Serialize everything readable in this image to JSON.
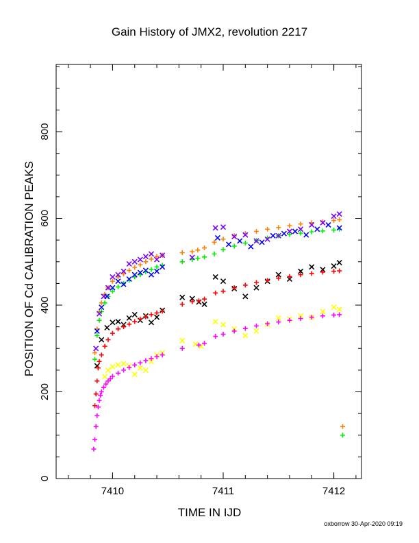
{
  "chart_data": {
    "type": "scatter",
    "title": "Gain History of JMX2, revolution 2217",
    "xlabel": "TIME IN IJD",
    "ylabel": "POSITION OF Cd CALIBRATION PEAKS",
    "xlim": [
      7409.49,
      7412.25
    ],
    "ylim": [
      0,
      955
    ],
    "x_ticks": [
      7410,
      7411,
      7412
    ],
    "y_ticks": [
      0,
      200,
      400,
      600,
      800
    ],
    "series": [
      {
        "color": "#ff7f00",
        "marker": "plus",
        "x": [
          7409.84,
          7409.86,
          7409.88,
          7409.9,
          7409.93,
          7409.96,
          7410.0,
          7410.05,
          7410.1,
          7410.15,
          7410.2,
          7410.25,
          7410.3,
          7410.35,
          7410.4,
          7410.45,
          7410.63,
          7410.72,
          7410.77,
          7410.83,
          7410.92,
          7411.0,
          7411.1,
          7411.2,
          7411.3,
          7411.4,
          7411.5,
          7411.6,
          7411.7,
          7411.8,
          7411.9,
          7412.0,
          7412.05,
          7412.08
        ],
        "y": [
          290,
          345,
          385,
          405,
          425,
          440,
          455,
          465,
          472,
          480,
          487,
          493,
          500,
          506,
          512,
          515,
          521,
          523,
          527,
          532,
          545,
          552,
          560,
          565,
          570,
          575,
          579,
          583,
          587,
          590,
          592,
          595,
          597,
          120
        ]
      },
      {
        "color": "#00ee00",
        "marker": "plus",
        "x": [
          7409.84,
          7409.86,
          7409.88,
          7409.9,
          7409.93,
          7409.96,
          7410.0,
          7410.05,
          7410.1,
          7410.15,
          7410.2,
          7410.25,
          7410.3,
          7410.35,
          7410.4,
          7410.45,
          7410.63,
          7410.72,
          7410.77,
          7410.83,
          7410.92,
          7411.0,
          7411.1,
          7411.2,
          7411.3,
          7411.4,
          7411.5,
          7411.6,
          7411.7,
          7411.8,
          7411.9,
          7412.0,
          7412.05,
          7412.08
        ],
        "y": [
          275,
          330,
          365,
          385,
          405,
          420,
          432,
          442,
          450,
          457,
          465,
          470,
          477,
          482,
          488,
          492,
          500,
          505,
          508,
          511,
          518,
          528,
          536,
          543,
          549,
          555,
          560,
          563,
          566,
          569,
          571,
          573,
          575,
          100
        ]
      },
      {
        "color": "#7700ff",
        "marker": "cross",
        "x": [
          7409.85,
          7409.88,
          7409.92,
          7409.96,
          7410.0,
          7410.05,
          7410.1,
          7410.15,
          7410.2,
          7410.25,
          7410.3,
          7410.35,
          7410.4,
          7410.45,
          7410.72,
          7410.93,
          7411.0,
          7411.1,
          7411.2,
          7411.3,
          7411.4,
          7411.5,
          7411.6,
          7411.7,
          7411.8,
          7411.9,
          7412.0,
          7412.05
        ],
        "y": [
          300,
          380,
          420,
          440,
          465,
          470,
          478,
          495,
          500,
          505,
          512,
          518,
          505,
          515,
          510,
          578,
          580,
          558,
          562,
          548,
          552,
          560,
          570,
          575,
          585,
          590,
          605,
          610
        ]
      },
      {
        "color": "#0000ff",
        "marker": "cross",
        "x": [
          7409.86,
          7409.9,
          7409.95,
          7410.0,
          7410.05,
          7410.1,
          7410.15,
          7410.2,
          7410.25,
          7410.3,
          7410.35,
          7410.4,
          7410.45,
          7410.95,
          7411.05,
          7411.15,
          7411.25,
          7411.35,
          7411.45,
          7411.55,
          7411.65,
          7411.75,
          7411.85,
          7411.95,
          7412.05
        ],
        "y": [
          340,
          395,
          420,
          440,
          455,
          448,
          460,
          470,
          475,
          480,
          470,
          478,
          488,
          555,
          540,
          548,
          535,
          545,
          560,
          565,
          570,
          562,
          575,
          585,
          578
        ]
      },
      {
        "color": "#000000",
        "marker": "cross",
        "x": [
          7409.86,
          7409.9,
          7409.95,
          7410.0,
          7410.05,
          7410.1,
          7410.15,
          7410.2,
          7410.25,
          7410.3,
          7410.35,
          7410.4,
          7410.45,
          7410.63,
          7410.72,
          7410.78,
          7410.83,
          7410.93,
          7411.0,
          7411.1,
          7411.2,
          7411.3,
          7411.4,
          7411.5,
          7411.6,
          7411.7,
          7411.8,
          7411.9,
          7412.0,
          7412.05
        ],
        "y": [
          260,
          320,
          348,
          360,
          362,
          355,
          370,
          378,
          365,
          375,
          360,
          372,
          388,
          418,
          415,
          407,
          402,
          465,
          455,
          438,
          420,
          440,
          455,
          470,
          460,
          478,
          488,
          482,
          490,
          498
        ]
      },
      {
        "color": "#ff0000",
        "marker": "plus",
        "x": [
          7409.84,
          7409.85,
          7409.86,
          7409.87,
          7409.88,
          7409.9,
          7409.93,
          7409.96,
          7410.0,
          7410.05,
          7410.1,
          7410.15,
          7410.2,
          7410.25,
          7410.3,
          7410.35,
          7410.4,
          7410.45,
          7410.63,
          7410.72,
          7410.78,
          7410.83,
          7410.93,
          7411.0,
          7411.1,
          7411.2,
          7411.3,
          7411.4,
          7411.5,
          7411.6,
          7411.7,
          7411.8,
          7411.9,
          7412.0,
          7412.05
        ],
        "y": [
          168,
          195,
          225,
          255,
          270,
          285,
          305,
          320,
          335,
          345,
          350,
          356,
          362,
          368,
          373,
          378,
          382,
          386,
          402,
          408,
          410,
          414,
          428,
          432,
          440,
          446,
          452,
          457,
          462,
          466,
          470,
          473,
          476,
          478,
          479
        ]
      },
      {
        "color": "#ffff00",
        "marker": "cross",
        "x": [
          7409.93,
          7409.96,
          7410.0,
          7410.05,
          7410.1,
          7410.15,
          7410.2,
          7410.25,
          7410.3,
          7410.35,
          7410.4,
          7410.45,
          7410.63,
          7410.75,
          7410.8,
          7410.93,
          7411.0,
          7411.1,
          7411.2,
          7411.3,
          7411.4,
          7411.5,
          7411.6,
          7411.7,
          7411.8,
          7411.9,
          7412.0,
          7412.05
        ],
        "y": [
          235,
          250,
          258,
          262,
          265,
          260,
          240,
          255,
          250,
          270,
          285,
          290,
          318,
          310,
          305,
          362,
          355,
          345,
          330,
          340,
          355,
          370,
          368,
          375,
          372,
          385,
          395,
          390
        ]
      },
      {
        "color": "#ff00ff",
        "marker": "plus",
        "x": [
          7409.83,
          7409.84,
          7409.85,
          7409.86,
          7409.87,
          7409.88,
          7409.89,
          7409.9,
          7409.92,
          7409.94,
          7409.96,
          7409.98,
          7410.0,
          7410.05,
          7410.1,
          7410.15,
          7410.2,
          7410.25,
          7410.3,
          7410.35,
          7410.4,
          7410.45,
          7410.63,
          7410.78,
          7410.83,
          7410.93,
          7411.0,
          7411.1,
          7411.2,
          7411.3,
          7411.4,
          7411.5,
          7411.6,
          7411.7,
          7411.8,
          7411.9,
          7412.0,
          7412.05
        ],
        "y": [
          68,
          90,
          120,
          145,
          165,
          180,
          192,
          200,
          210,
          218,
          225,
          230,
          236,
          243,
          250,
          256,
          262,
          267,
          272,
          277,
          281,
          285,
          300,
          308,
          312,
          328,
          333,
          340,
          346,
          352,
          357,
          361,
          365,
          369,
          372,
          375,
          377,
          378
        ]
      }
    ]
  },
  "footer": "oxborrow 30-Apr-2020 09:19"
}
